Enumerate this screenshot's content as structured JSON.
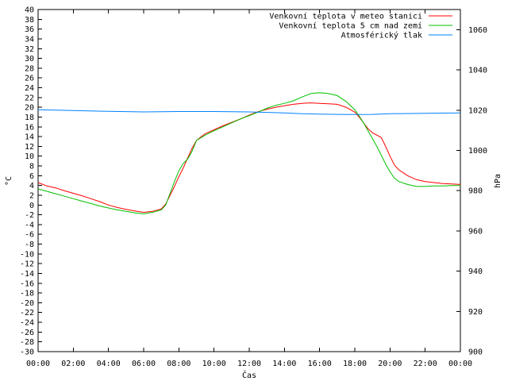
{
  "chart_data": {
    "type": "line",
    "title": "",
    "xlabel": "Čas",
    "ylabel": "°C",
    "y2label": "hPa",
    "x_ticks": [
      "00:00",
      "02:00",
      "04:00",
      "06:00",
      "08:00",
      "10:00",
      "12:00",
      "14:00",
      "16:00",
      "18:00",
      "20:00",
      "22:00",
      "00:00"
    ],
    "x_range_hours": [
      0,
      24
    ],
    "ylim": [
      -30,
      40
    ],
    "y_tick_step": 2,
    "y2lim": [
      900,
      1070
    ],
    "y2_ticks": [
      900,
      920,
      940,
      960,
      980,
      1000,
      1020,
      1040,
      1060
    ],
    "grid": false,
    "legend_position": "top-right",
    "series": [
      {
        "name": "Venkovní teplota v meteo stanici",
        "axis": "left",
        "color": "#ff0000",
        "points": [
          [
            0,
            4.6
          ],
          [
            0.5,
            3.9
          ],
          [
            1,
            3.5
          ],
          [
            1.5,
            2.9
          ],
          [
            2,
            2.4
          ],
          [
            2.5,
            1.9
          ],
          [
            3,
            1.3
          ],
          [
            3.5,
            0.7
          ],
          [
            4,
            0.0
          ],
          [
            4.5,
            -0.5
          ],
          [
            5,
            -0.9
          ],
          [
            5.5,
            -1.2
          ],
          [
            6,
            -1.5
          ],
          [
            6.5,
            -1.3
          ],
          [
            7,
            -0.8
          ],
          [
            7.25,
            0.2
          ],
          [
            7.5,
            2.0
          ],
          [
            7.75,
            3.8
          ],
          [
            8,
            5.8
          ],
          [
            8.25,
            7.6
          ],
          [
            8.5,
            9.6
          ],
          [
            8.75,
            11.6
          ],
          [
            9,
            13.2
          ],
          [
            9.5,
            14.6
          ],
          [
            10,
            15.4
          ],
          [
            10.5,
            16.2
          ],
          [
            11,
            16.9
          ],
          [
            11.5,
            17.6
          ],
          [
            12,
            18.4
          ],
          [
            12.5,
            19.1
          ],
          [
            13,
            19.6
          ],
          [
            13.5,
            20.0
          ],
          [
            14,
            20.3
          ],
          [
            14.5,
            20.6
          ],
          [
            15,
            20.8
          ],
          [
            15.5,
            20.9
          ],
          [
            16,
            20.8
          ],
          [
            16.5,
            20.7
          ],
          [
            17,
            20.6
          ],
          [
            17.5,
            20.0
          ],
          [
            18,
            19.0
          ],
          [
            18.25,
            18.0
          ],
          [
            18.5,
            16.8
          ],
          [
            18.75,
            15.6
          ],
          [
            19,
            14.8
          ],
          [
            19.5,
            13.8
          ],
          [
            19.75,
            12.0
          ],
          [
            20,
            10.0
          ],
          [
            20.25,
            8.2
          ],
          [
            20.5,
            7.2
          ],
          [
            20.75,
            6.6
          ],
          [
            21,
            6.0
          ],
          [
            21.5,
            5.2
          ],
          [
            22,
            4.8
          ],
          [
            22.5,
            4.6
          ],
          [
            23,
            4.4
          ],
          [
            23.5,
            4.3
          ],
          [
            24,
            4.2
          ]
        ]
      },
      {
        "name": "Venkovní teplota 5 cm nad zemí",
        "axis": "left",
        "color": "#00c000",
        "points": [
          [
            0,
            3.3
          ],
          [
            0.5,
            2.8
          ],
          [
            1,
            2.3
          ],
          [
            1.5,
            1.8
          ],
          [
            2,
            1.3
          ],
          [
            2.5,
            0.8
          ],
          [
            3,
            0.3
          ],
          [
            3.5,
            -0.2
          ],
          [
            4,
            -0.6
          ],
          [
            4.5,
            -1.0
          ],
          [
            5,
            -1.3
          ],
          [
            5.5,
            -1.6
          ],
          [
            6,
            -1.8
          ],
          [
            6.5,
            -1.5
          ],
          [
            7,
            -1.0
          ],
          [
            7.25,
            0.0
          ],
          [
            7.5,
            2.4
          ],
          [
            7.75,
            4.8
          ],
          [
            8,
            7.0
          ],
          [
            8.25,
            8.5
          ],
          [
            8.5,
            9.4
          ],
          [
            8.75,
            11.0
          ],
          [
            9,
            13.2
          ],
          [
            9.5,
            14.3
          ],
          [
            10,
            15.2
          ],
          [
            10.5,
            16.0
          ],
          [
            11,
            16.8
          ],
          [
            11.5,
            17.6
          ],
          [
            12,
            18.3
          ],
          [
            12.5,
            19.0
          ],
          [
            13,
            19.8
          ],
          [
            13.5,
            20.4
          ],
          [
            14,
            20.8
          ],
          [
            14.5,
            21.3
          ],
          [
            15,
            22.1
          ],
          [
            15.5,
            22.8
          ],
          [
            16,
            23.0
          ],
          [
            16.5,
            22.8
          ],
          [
            17,
            22.4
          ],
          [
            17.5,
            21.2
          ],
          [
            18,
            19.5
          ],
          [
            18.25,
            18.2
          ],
          [
            18.5,
            16.8
          ],
          [
            18.75,
            15.2
          ],
          [
            19,
            13.6
          ],
          [
            19.25,
            12.0
          ],
          [
            19.5,
            10.2
          ],
          [
            19.75,
            8.4
          ],
          [
            20,
            6.8
          ],
          [
            20.25,
            5.5
          ],
          [
            20.5,
            4.8
          ],
          [
            21,
            4.2
          ],
          [
            21.5,
            3.8
          ],
          [
            22,
            3.8
          ],
          [
            22.5,
            3.9
          ],
          [
            23,
            3.9
          ],
          [
            23.5,
            4.0
          ],
          [
            24,
            4.0
          ]
        ]
      },
      {
        "name": "Atmosférický tlak",
        "axis": "right",
        "color": "#0080ff",
        "points": [
          [
            0,
            1020.2
          ],
          [
            2,
            1019.8
          ],
          [
            4,
            1019.4
          ],
          [
            6,
            1019.1
          ],
          [
            8,
            1019.3
          ],
          [
            10,
            1019.3
          ],
          [
            12,
            1019.1
          ],
          [
            13,
            1018.9
          ],
          [
            14,
            1018.6
          ],
          [
            15,
            1018.2
          ],
          [
            16,
            1018.0
          ],
          [
            17,
            1017.9
          ],
          [
            18,
            1017.8
          ],
          [
            19,
            1017.9
          ],
          [
            20,
            1018.2
          ],
          [
            22,
            1018.4
          ],
          [
            24,
            1018.6
          ]
        ]
      }
    ]
  }
}
